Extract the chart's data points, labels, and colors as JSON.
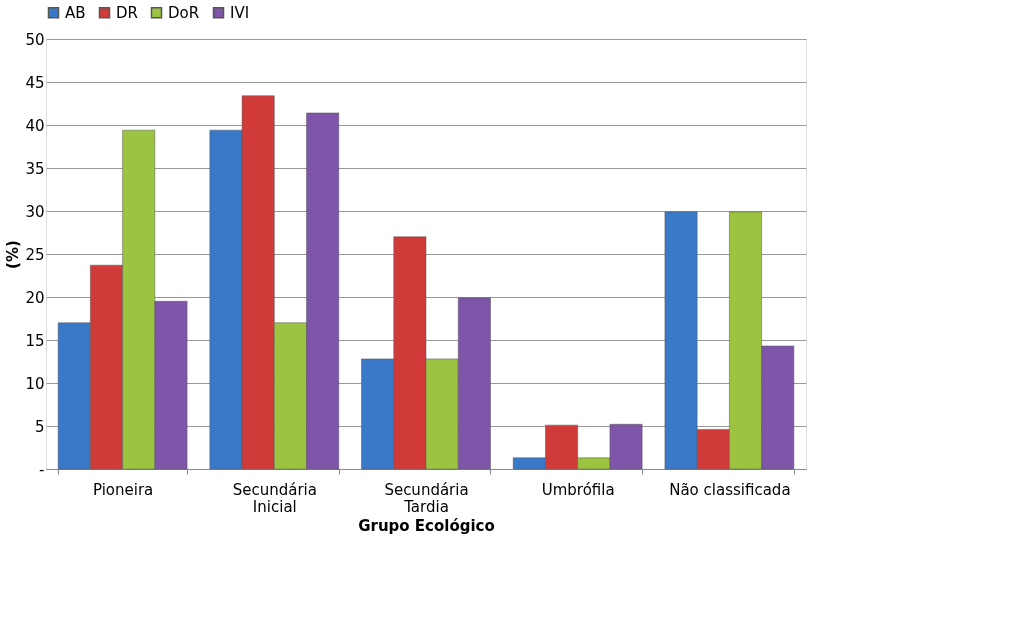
{
  "chart_data": {
    "type": "bar",
    "xlabel": "Grupo Ecológico",
    "ylabel": "(%)",
    "categories": [
      "Pioneira",
      "Secundária Inicial",
      "Secundária Tardia",
      "Umbrófila",
      "Não classificada"
    ],
    "series": [
      {
        "name": "AB",
        "color": "#3a78c8",
        "values": [
          17,
          39.4,
          12.8,
          1.3,
          29.9
        ]
      },
      {
        "name": "DR",
        "color": "#d03a38",
        "values": [
          23.7,
          43.4,
          27,
          5.1,
          4.6
        ]
      },
      {
        "name": "DoR",
        "color": "#9cc440",
        "values": [
          39.4,
          17,
          12.8,
          1.3,
          29.9
        ]
      },
      {
        "name": "IVI",
        "color": "#7e55a8",
        "values": [
          19.5,
          41.4,
          19.9,
          5.2,
          14.3
        ]
      }
    ],
    "ylim": [
      0,
      50
    ],
    "yticks": [
      {
        "value": 0,
        "label": "-"
      },
      5,
      10,
      15,
      20,
      25,
      30,
      35,
      40,
      45,
      50
    ],
    "grid": "y",
    "legend": "top"
  }
}
